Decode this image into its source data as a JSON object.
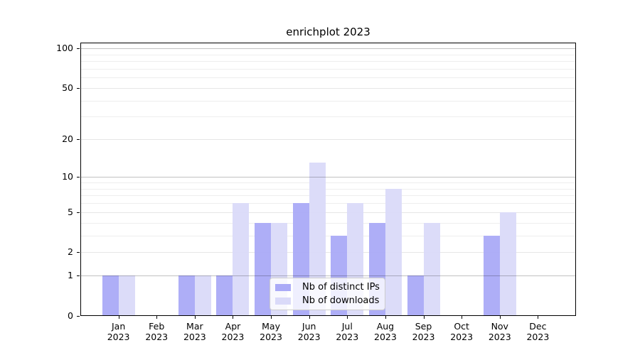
{
  "chart_data": {
    "type": "bar",
    "title": "enrichplot 2023",
    "categories": [
      "Jan",
      "Feb",
      "Mar",
      "Apr",
      "May",
      "Jun",
      "Jul",
      "Aug",
      "Sep",
      "Oct",
      "Nov",
      "Dec"
    ],
    "x_year": "2023",
    "series": [
      {
        "name": "Nb of distinct IPs",
        "color": "#aaaaf7",
        "values": [
          1,
          0,
          1,
          1,
          4,
          6,
          3,
          4,
          1,
          0,
          3,
          0
        ]
      },
      {
        "name": "Nb of downloads",
        "color": "#dadaf9",
        "values": [
          1,
          0,
          1,
          6,
          4,
          13,
          6,
          8,
          4,
          0,
          5,
          0
        ]
      }
    ],
    "y_scale": "log10(1+v)",
    "ylim": [
      0,
      110
    ],
    "y_tick_labels": [
      0,
      1,
      2,
      5,
      10,
      20,
      50,
      100
    ],
    "y_strong_gridlines": [
      1,
      10,
      100
    ],
    "y_light_gridlines": [
      2,
      5,
      20,
      50
    ],
    "y_minor_gridlines": [
      3,
      4,
      6,
      7,
      8,
      9,
      30,
      40,
      60,
      70,
      80,
      90
    ],
    "legend_position": "lower center",
    "grid": true,
    "colors": {
      "strong_grid": "#c2c2c2",
      "light_grid": "#e6e6e6",
      "minor_grid": "#eeeeee",
      "axis": "#000000",
      "background": "#ffffff"
    }
  }
}
